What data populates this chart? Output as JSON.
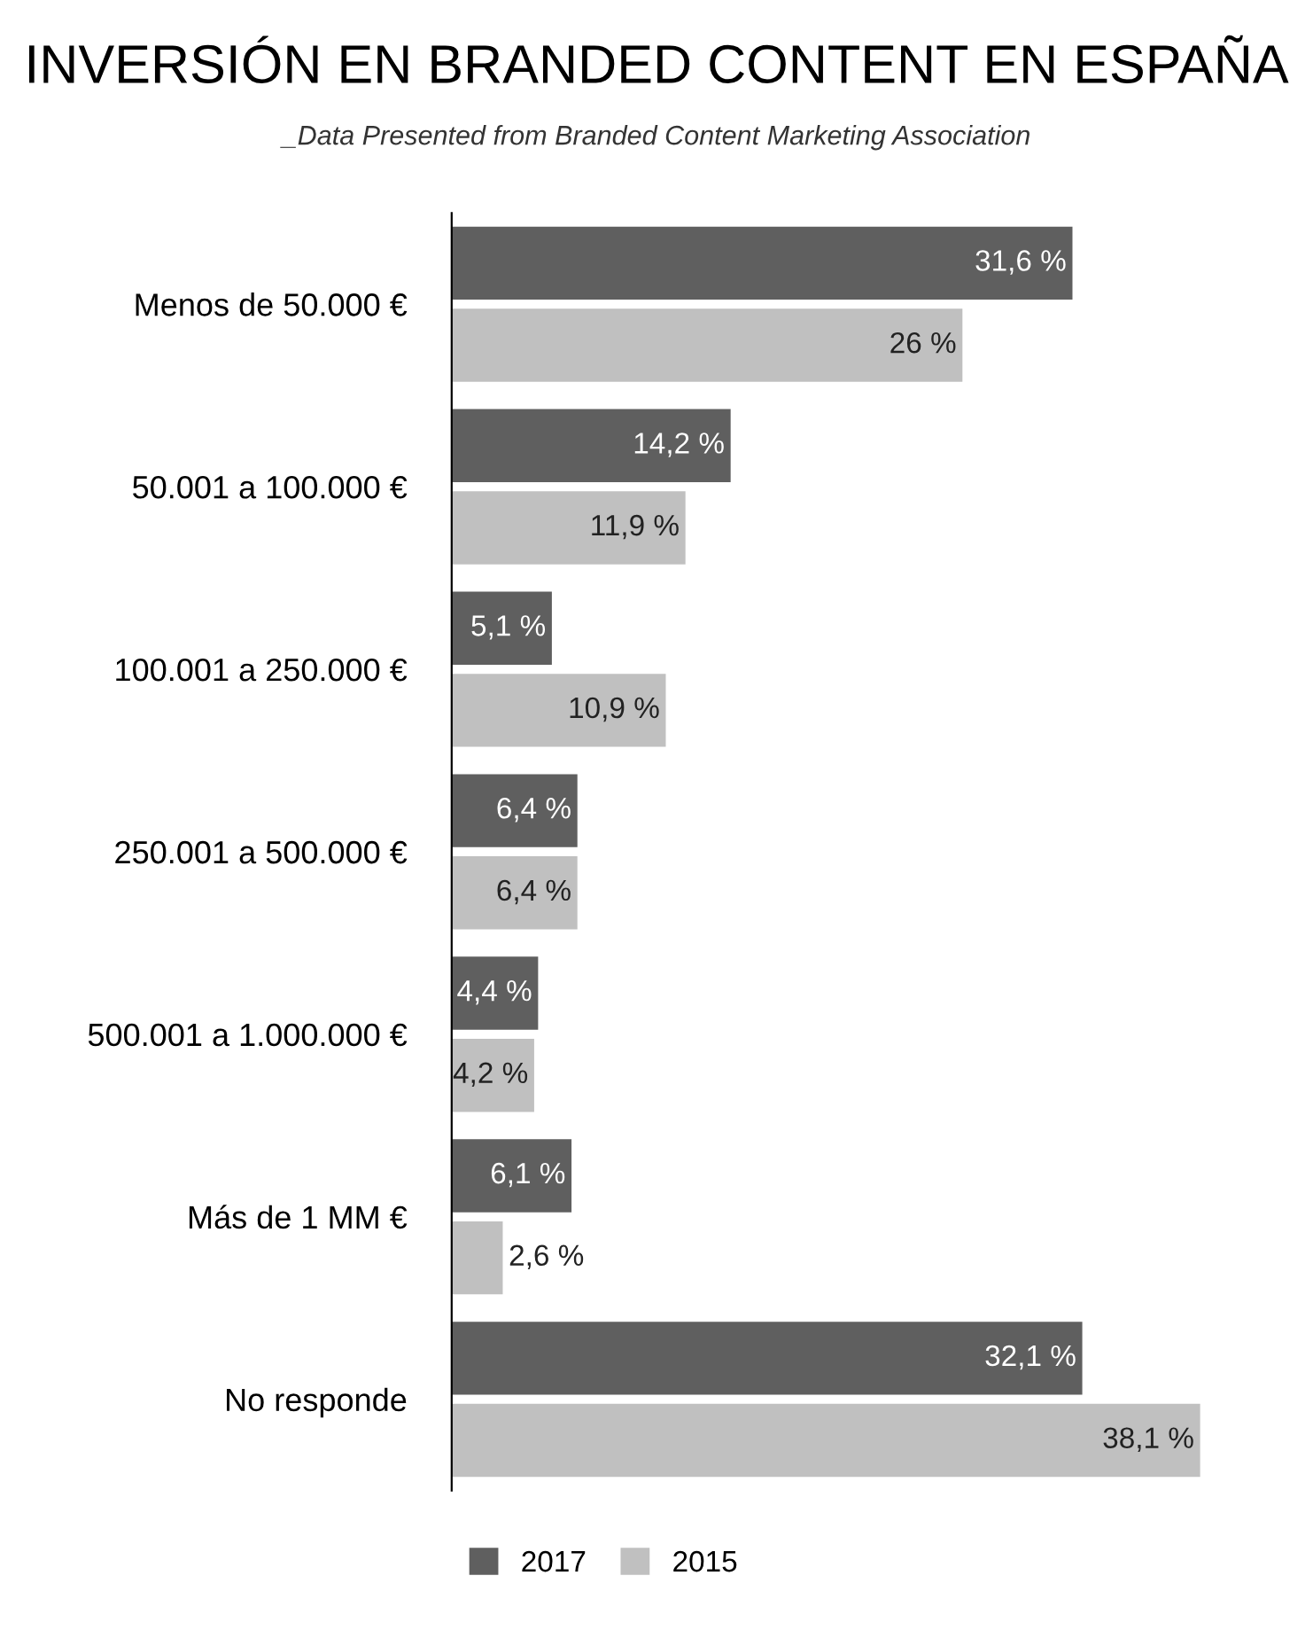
{
  "chart_data": {
    "type": "bar",
    "orientation": "horizontal",
    "title": "INVERSIÓN EN BRANDED CONTENT EN ESPAÑA",
    "subtitle": "_Data Presented from Branded Content Marketing Association",
    "categories": [
      "Menos de 50.000 €",
      "50.001 a 100.000 €",
      "100.001 a 250.000 €",
      "250.001 a 500.000 €",
      "500.001 a 1.000.000 €",
      "Más de 1 MM €",
      "No responde"
    ],
    "series": [
      {
        "name": "2017",
        "color": "#5f5f5f",
        "values": [
          31.6,
          14.2,
          5.1,
          6.4,
          4.4,
          6.1,
          32.1
        ],
        "value_labels": [
          "31,6 %",
          "14,2 %",
          "5,1 %",
          "6,4 %",
          "4,4 %",
          "6,1 %",
          "32,1 %"
        ]
      },
      {
        "name": "2015",
        "color": "#c0c0c0",
        "values": [
          26,
          11.9,
          10.9,
          6.4,
          4.2,
          2.6,
          38.1
        ],
        "value_labels": [
          "26 %",
          "11,9 %",
          "10,9 %",
          "6,4 %",
          "4,2 %",
          "2,6 %",
          "38,1 %"
        ]
      }
    ],
    "legend": "bottom",
    "grid": false
  }
}
